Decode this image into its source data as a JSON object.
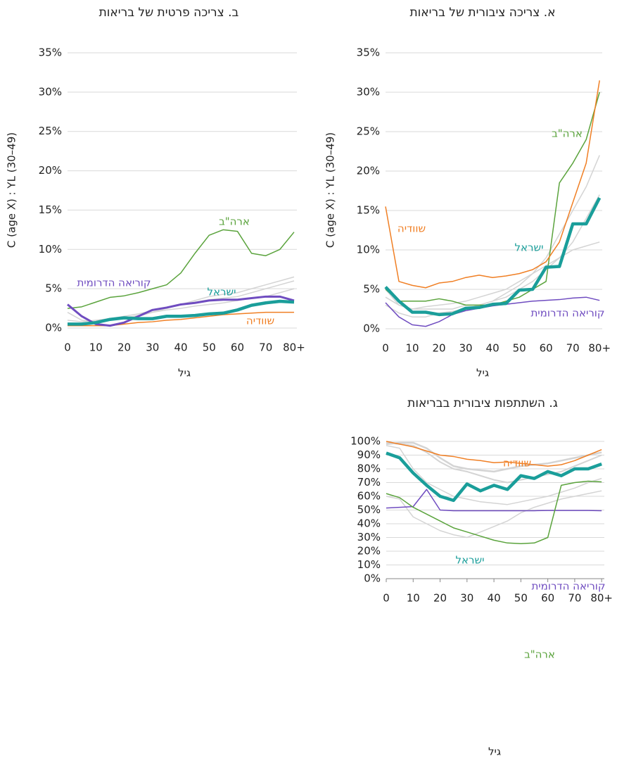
{
  "chart_data": [
    {
      "type": "line",
      "title": "א. צריכה ציבורית של בריאות",
      "y_label": "C  (age X) : YL (30–49)",
      "x_label": "גיל",
      "x": [
        0,
        5,
        10,
        15,
        20,
        25,
        30,
        35,
        40,
        45,
        50,
        55,
        60,
        65,
        70,
        75,
        80
      ],
      "xlim": [
        0,
        81
      ],
      "xticks": [
        0,
        10,
        20,
        30,
        40,
        50,
        60,
        70,
        {
          "value": 80,
          "label": "80+"
        }
      ],
      "ylim": [
        0,
        35
      ],
      "yticks": [
        {
          "value": 0,
          "label": "0%"
        },
        {
          "value": 5,
          "label": "5%"
        },
        {
          "value": 10,
          "label": "10%"
        },
        {
          "value": 15,
          "label": "15%"
        },
        {
          "value": 20,
          "label": "20%"
        },
        {
          "value": 25,
          "label": "25%"
        },
        {
          "value": 30,
          "label": "30%"
        },
        {
          "value": 35,
          "label": "35%"
        }
      ],
      "grid": true,
      "series": [
        {
          "color": "#d4d4d4",
          "width": 1.5,
          "values": [
            4,
            3,
            2.5,
            2.5,
            2.5,
            2.5,
            3,
            3,
            3.5,
            4.5,
            5.5,
            7,
            9,
            12,
            15,
            18,
            22
          ]
        },
        {
          "color": "#d4d4d4",
          "width": 1.5,
          "values": [
            3,
            2,
            1.5,
            1.5,
            2,
            2.2,
            2.5,
            3,
            3.5,
            4,
            5,
            6,
            7.5,
            9,
            11,
            14,
            17
          ]
        },
        {
          "color": "#d4d4d4",
          "width": 1.5,
          "values": [
            5,
            3,
            2.5,
            2.8,
            3,
            3.2,
            3.5,
            4,
            4.5,
            5,
            6,
            7,
            8,
            9,
            10,
            10.5,
            11
          ]
        },
        {
          "name": "ארה\"ב",
          "color": "#5aa33c",
          "width": 1.5,
          "values": [
            5,
            3.5,
            3.5,
            3.5,
            3.8,
            3.5,
            3,
            3,
            3,
            3.5,
            4,
            5,
            6,
            18.5,
            21,
            24,
            30
          ]
        },
        {
          "name": "שוודיה",
          "color": "#f07f24",
          "width": 1.5,
          "values": [
            15.5,
            6,
            5.5,
            5.2,
            5.8,
            6,
            6.5,
            6.8,
            6.5,
            6.7,
            7,
            7.5,
            8.5,
            11,
            16,
            21,
            31.5
          ]
        },
        {
          "name": "קוריאה הדרומית",
          "color": "#6f4cc0",
          "width": 1.5,
          "values": [
            3.3,
            1.5,
            0.5,
            0.3,
            0.9,
            1.8,
            2.3,
            2.6,
            2.9,
            3.1,
            3.3,
            3.5,
            3.6,
            3.7,
            3.9,
            4,
            3.6
          ]
        },
        {
          "name": "ישראל",
          "color": "#1a9e9a",
          "width": 4.5,
          "values": [
            5.3,
            3.5,
            2.1,
            2.1,
            1.8,
            1.9,
            2.6,
            2.7,
            3.1,
            3.2,
            4.9,
            5,
            7.8,
            7.9,
            13.3,
            13.3,
            16.6
          ]
        }
      ]
    },
    {
      "type": "line",
      "title": "ב. צריכה פרטית של בריאות",
      "y_label": "C  (age X) : YL (30–49)",
      "x_label": "גיל",
      "x": [
        0,
        5,
        10,
        15,
        20,
        25,
        30,
        35,
        40,
        45,
        50,
        55,
        60,
        65,
        70,
        75,
        80
      ],
      "xlim": [
        0,
        81
      ],
      "xticks": [
        0,
        10,
        20,
        30,
        40,
        50,
        60,
        70,
        {
          "value": 80,
          "label": "80+"
        }
      ],
      "ylim": [
        0,
        35
      ],
      "yticks": [
        {
          "value": 0,
          "label": "0%"
        },
        {
          "value": 5,
          "label": "5%"
        },
        {
          "value": 10,
          "label": "10%"
        },
        {
          "value": 15,
          "label": "15%"
        },
        {
          "value": 20,
          "label": "20%"
        },
        {
          "value": 25,
          "label": "25%"
        },
        {
          "value": 30,
          "label": "30%"
        },
        {
          "value": 35,
          "label": "35%"
        }
      ],
      "grid": true,
      "series": [
        {
          "color": "#d4d4d4",
          "width": 1.5,
          "values": [
            1,
            0.8,
            1,
            1.2,
            1.5,
            1.8,
            2.2,
            2.5,
            3,
            3.3,
            3.6,
            3.8,
            4,
            4.5,
            5,
            5.5,
            6
          ]
        },
        {
          "color": "#d4d4d4",
          "width": 1.5,
          "values": [
            0.5,
            0.5,
            0.8,
            1,
            1.3,
            1.6,
            2,
            2.3,
            2.5,
            2.8,
            3,
            3.2,
            3.5,
            3.8,
            4,
            4.5,
            5
          ]
        },
        {
          "color": "#d4d4d4",
          "width": 1.5,
          "values": [
            2,
            1,
            0.8,
            1,
            1.2,
            1.5,
            2,
            2.5,
            3,
            3.5,
            4,
            4.3,
            4.5,
            5,
            5.5,
            6,
            6.5
          ]
        },
        {
          "name": "ארה\"ב",
          "color": "#5aa33c",
          "width": 1.5,
          "values": [
            2.5,
            2.7,
            3.3,
            3.9,
            4.1,
            4.5,
            5,
            5.5,
            7,
            9.5,
            11.8,
            12.5,
            12.3,
            9.5,
            9.2,
            10,
            12.2
          ]
        },
        {
          "name": "שוודיה",
          "color": "#f07f24",
          "width": 1.5,
          "values": [
            0.3,
            0.3,
            0.3,
            0.3,
            0.5,
            0.7,
            0.8,
            1,
            1.1,
            1.3,
            1.5,
            1.7,
            1.8,
            1.9,
            2,
            2,
            2
          ]
        },
        {
          "name": "קוריאה הדרומית",
          "color": "#6f4cc0",
          "width": 3,
          "values": [
            3,
            1.5,
            0.5,
            0.3,
            0.7,
            1.5,
            2.3,
            2.6,
            3,
            3.2,
            3.5,
            3.6,
            3.6,
            3.8,
            4,
            4,
            3.5
          ]
        },
        {
          "name": "ישראל",
          "color": "#1a9e9a",
          "width": 4.5,
          "values": [
            0.5,
            0.5,
            0.7,
            1.1,
            1.3,
            1.2,
            1.2,
            1.5,
            1.5,
            1.6,
            1.8,
            1.9,
            2.3,
            2.9,
            3.2,
            3.4,
            3.3
          ]
        }
      ]
    },
    {
      "type": "line",
      "title": "ג. השתתפות ציבורית בבריאות",
      "x_label": "גיל",
      "x": [
        0,
        5,
        10,
        15,
        20,
        25,
        30,
        35,
        40,
        45,
        50,
        55,
        60,
        65,
        70,
        75,
        80
      ],
      "xlim": [
        0,
        81
      ],
      "xticks": [
        0,
        10,
        20,
        30,
        40,
        50,
        60,
        70,
        {
          "value": 80,
          "label": "80+"
        }
      ],
      "ylim": [
        0,
        100
      ],
      "yticks": [
        {
          "value": 0,
          "label": "0%"
        },
        {
          "value": 10,
          "label": "10%"
        },
        {
          "value": 20,
          "label": "20%"
        },
        {
          "value": 30,
          "label": "30%"
        },
        {
          "value": 40,
          "label": "40%"
        },
        {
          "value": 50,
          "label": "50%"
        },
        {
          "value": 60,
          "label": "60%"
        },
        {
          "value": 70,
          "label": "70%"
        },
        {
          "value": 80,
          "label": "80%"
        },
        {
          "value": 90,
          "label": "90%"
        },
        {
          "value": 100,
          "label": "100%"
        }
      ],
      "grid": true,
      "series": [
        {
          "color": "#d4d4d4",
          "width": 2,
          "values": [
            99,
            98,
            97,
            92,
            85,
            80,
            78,
            75,
            72,
            70,
            72,
            74,
            76,
            78,
            82,
            86,
            90
          ]
        },
        {
          "color": "#d4d4d4",
          "width": 1.5,
          "values": [
            97,
            95,
            80,
            70,
            65,
            60,
            58,
            56,
            55,
            54,
            56,
            58,
            60,
            63,
            66,
            70,
            73
          ]
        },
        {
          "color": "#d4d4d4",
          "width": 1.5,
          "values": [
            60,
            58,
            45,
            40,
            35,
            32,
            30,
            34,
            38,
            42,
            48,
            52,
            55,
            58,
            60,
            62,
            64
          ]
        },
        {
          "color": "#d4d4d4",
          "width": 2.5,
          "values": [
            98,
            99,
            99,
            95,
            88,
            82,
            80,
            79,
            78,
            80,
            82,
            83,
            84,
            86,
            88,
            90,
            92
          ]
        },
        {
          "name": "שוודיה",
          "color": "#f07f24",
          "width": 1.5,
          "values": [
            100,
            98,
            96,
            93,
            90,
            89,
            87,
            86,
            84.5,
            85,
            84,
            83,
            82,
            83,
            86,
            90,
            94
          ]
        },
        {
          "name": "ישראל",
          "color": "#1a9e9a",
          "width": 4.5,
          "values": [
            91.5,
            88,
            77,
            68,
            60,
            57,
            69,
            64,
            68,
            65,
            75,
            73,
            78,
            75,
            80,
            80,
            83.5
          ]
        },
        {
          "name": "קוריאה הדרומית",
          "color": "#6f4cc0",
          "width": 1.5,
          "values": [
            51.5,
            52,
            52.5,
            65,
            50,
            49.5,
            49.5,
            49.5,
            49.5,
            49.5,
            49.5,
            49.5,
            49.7,
            49.7,
            49.7,
            49.7,
            49.5
          ]
        },
        {
          "name": "ארה\"ב",
          "color": "#5aa33c",
          "width": 1.5,
          "values": [
            62,
            59,
            52,
            47,
            42,
            37,
            34,
            31,
            28,
            26,
            25.5,
            26,
            30,
            68,
            70,
            71,
            70.5
          ]
        }
      ]
    }
  ]
}
